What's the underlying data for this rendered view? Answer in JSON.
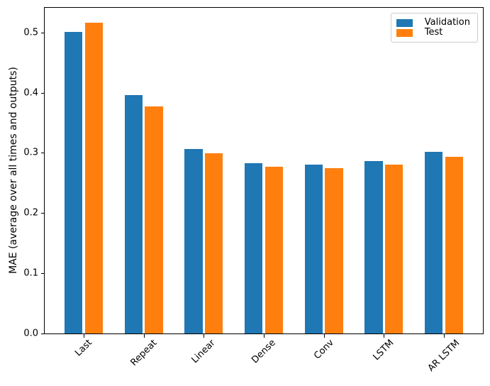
{
  "chart_data": {
    "type": "bar",
    "title": "",
    "xlabel": "",
    "ylabel": "MAE (average over all times and outputs)",
    "categories": [
      "Last",
      "Repeat",
      "Linear",
      "Dense",
      "Conv",
      "LSTM",
      "AR LSTM"
    ],
    "series": [
      {
        "name": "Validation",
        "color": "#1f77b4",
        "values": [
          0.501,
          0.396,
          0.306,
          0.283,
          0.281,
          0.286,
          0.302
        ]
      },
      {
        "name": "Test",
        "color": "#ff7f0e",
        "values": [
          0.516,
          0.377,
          0.299,
          0.277,
          0.275,
          0.28,
          0.294
        ]
      }
    ],
    "yticks": [
      0.0,
      0.1,
      0.2,
      0.3,
      0.4,
      0.5
    ],
    "ylim": [
      0,
      0.541
    ],
    "xtick_rotation": 45,
    "grid": false,
    "legend_position": "upper right",
    "bar_group_offset": 0.17,
    "bar_width_units": 0.3
  }
}
